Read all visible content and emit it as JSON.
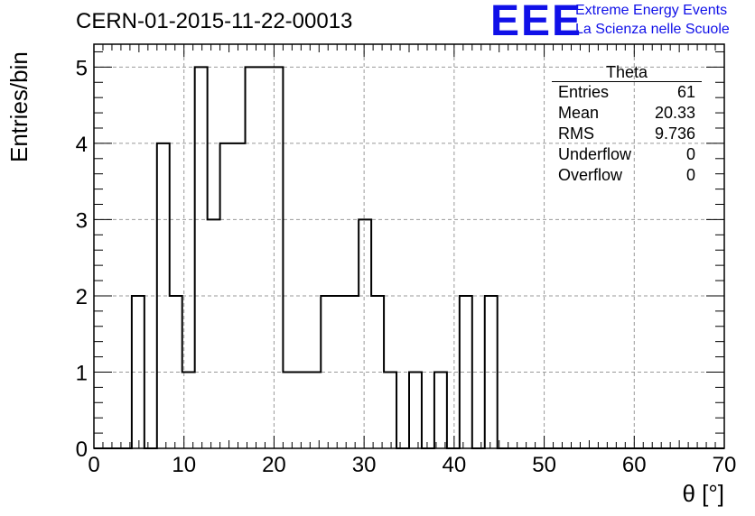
{
  "header": {
    "title": "CERN-01-2015-11-22-00013",
    "logo_text": "EEE",
    "logo_line1": "Extreme Energy Events",
    "logo_line2": "La Scienza nelle Scuole",
    "brand_color": "#1010e8"
  },
  "stats": {
    "title": "Theta",
    "rows": [
      {
        "label": "Entries",
        "value": "61"
      },
      {
        "label": "Mean",
        "value": "20.33"
      },
      {
        "label": "RMS",
        "value": "9.736"
      },
      {
        "label": "Underflow",
        "value": "0"
      },
      {
        "label": "Overflow",
        "value": "0"
      }
    ]
  },
  "chart_data": {
    "type": "histogram",
    "title": "CERN-01-2015-11-22-00013",
    "xlabel": "θ [°]",
    "ylabel": "Entries/bin",
    "xlim": [
      0,
      70
    ],
    "ylim": [
      0,
      5.3
    ],
    "x_ticks": [
      0,
      10,
      20,
      30,
      40,
      50,
      60,
      70
    ],
    "y_ticks": [
      0,
      1,
      2,
      3,
      4,
      5
    ],
    "grid": true,
    "bin_width": 1.4,
    "bin_count": 50,
    "counts": [
      0,
      0,
      0,
      2,
      0,
      4,
      2,
      1,
      5,
      3,
      4,
      4,
      5,
      5,
      5,
      1,
      1,
      1,
      2,
      2,
      2,
      3,
      2,
      1,
      0,
      1,
      0,
      1,
      0,
      2,
      0,
      2,
      0,
      0,
      0,
      0,
      0,
      0,
      0,
      0,
      0,
      0,
      0,
      0,
      0,
      0,
      0,
      0,
      0,
      0
    ]
  }
}
